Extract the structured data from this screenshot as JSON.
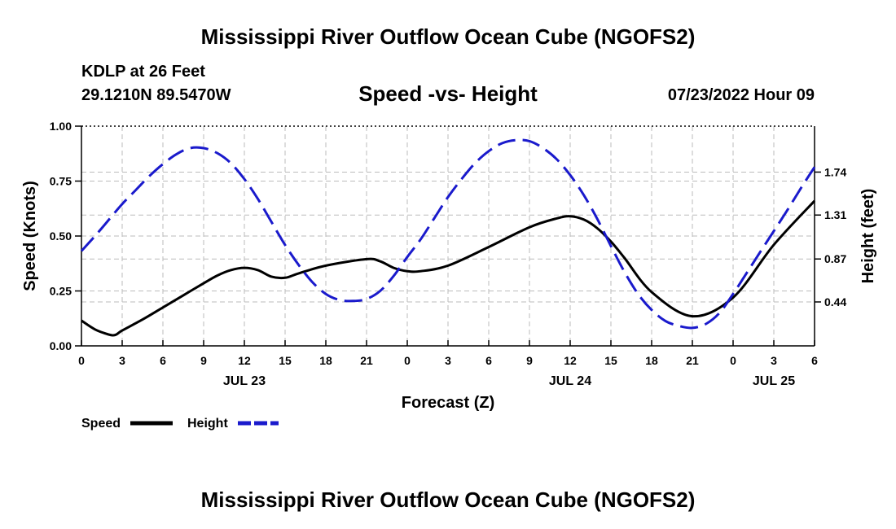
{
  "header": {
    "title": "Mississippi River Outflow Ocean Cube (NGOFS2)",
    "station": "KDLP at 26 Feet",
    "coords": "29.1210N  89.5470W",
    "subtitle": "Speed -vs- Height",
    "datetime": "07/23/2022 Hour 09"
  },
  "footer": {
    "title": "Mississippi River Outflow Ocean Cube (NGOFS2)"
  },
  "colors": {
    "speed": "#000000",
    "height": "#1a1acc",
    "grid": "#bbbbbb"
  },
  "chart_data": {
    "type": "line",
    "title": "Speed -vs- Height",
    "xlabel": "Forecast (Z)",
    "ylabel": "Speed (Knots)",
    "y2label": "Height (feet)",
    "x_unit": "hours from 00Z JUL 23",
    "xlim": [
      0,
      54
    ],
    "ylim": [
      0,
      1
    ],
    "y2lim": [
      0,
      2.2
    ],
    "x_ticks": [
      0,
      3,
      6,
      9,
      12,
      15,
      18,
      21,
      24,
      27,
      30,
      33,
      36,
      39,
      42,
      45,
      48,
      51,
      54
    ],
    "x_tick_labels": [
      "0",
      "3",
      "6",
      "9",
      "12",
      "15",
      "18",
      "21",
      "0",
      "3",
      "6",
      "9",
      "12",
      "15",
      "18",
      "21",
      "0",
      "3",
      "6"
    ],
    "y_ticks": [
      0,
      0.25,
      0.5,
      0.75,
      1.0
    ],
    "y_tick_labels": [
      "0.00",
      "0.25",
      "0.50",
      "0.75",
      "1.00"
    ],
    "y2_ticks": [
      0.44,
      0.87,
      1.31,
      1.74
    ],
    "y2_tick_labels": [
      "0.44",
      "0.87",
      "1.31",
      "1.74"
    ],
    "date_labels": [
      {
        "x": 12,
        "label": "JUL 23"
      },
      {
        "x": 36,
        "label": "JUL 24"
      },
      {
        "x": 51,
        "label": "JUL 25"
      }
    ],
    "grid": true,
    "series": [
      {
        "name": "Speed",
        "axis": "left",
        "style": "solid",
        "x": [
          0,
          1,
          2,
          2.5,
          3,
          4.5,
          6,
          7.5,
          9,
          10,
          11,
          12,
          13,
          14,
          15,
          16,
          18,
          21,
          22,
          23,
          24,
          25,
          27,
          30,
          33,
          35,
          36,
          37,
          38,
          39,
          40,
          42,
          45,
          48,
          51,
          54
        ],
        "y": [
          0.115,
          0.075,
          0.052,
          0.05,
          0.07,
          0.12,
          0.175,
          0.23,
          0.285,
          0.32,
          0.345,
          0.355,
          0.345,
          0.315,
          0.31,
          0.33,
          0.365,
          0.395,
          0.385,
          0.355,
          0.34,
          0.34,
          0.365,
          0.45,
          0.54,
          0.58,
          0.59,
          0.575,
          0.535,
          0.475,
          0.4,
          0.245,
          0.135,
          0.22,
          0.46,
          0.66
        ]
      },
      {
        "name": "Height",
        "axis": "right",
        "style": "dashed",
        "x": [
          0,
          1,
          2,
          3,
          4,
          5,
          6,
          7,
          8,
          9,
          10,
          11,
          12,
          13,
          14,
          15,
          16,
          17,
          18,
          19,
          20,
          21,
          22,
          23,
          24,
          25,
          26,
          27,
          28,
          29,
          30,
          31,
          32,
          33,
          34,
          35,
          36,
          37,
          38,
          39,
          40,
          41,
          42,
          43,
          44,
          45,
          46,
          47,
          48,
          49,
          50,
          51,
          52,
          53,
          54
        ],
        "y": [
          0.95,
          1.1,
          1.26,
          1.42,
          1.56,
          1.7,
          1.82,
          1.92,
          1.98,
          1.98,
          1.93,
          1.83,
          1.67,
          1.47,
          1.24,
          1.01,
          0.81,
          0.64,
          0.52,
          0.46,
          0.45,
          0.47,
          0.55,
          0.7,
          0.89,
          1.07,
          1.28,
          1.49,
          1.67,
          1.83,
          1.95,
          2.03,
          2.06,
          2.05,
          1.98,
          1.87,
          1.71,
          1.51,
          1.27,
          1.0,
          0.74,
          0.52,
          0.36,
          0.25,
          0.2,
          0.18,
          0.22,
          0.33,
          0.52,
          0.73,
          0.94,
          1.15,
          1.36,
          1.58,
          1.79
        ]
      }
    ],
    "legend": [
      {
        "label": "Speed",
        "style": "solid"
      },
      {
        "label": "Height",
        "style": "dashed"
      }
    ],
    "legend_position": "bottom-left"
  }
}
